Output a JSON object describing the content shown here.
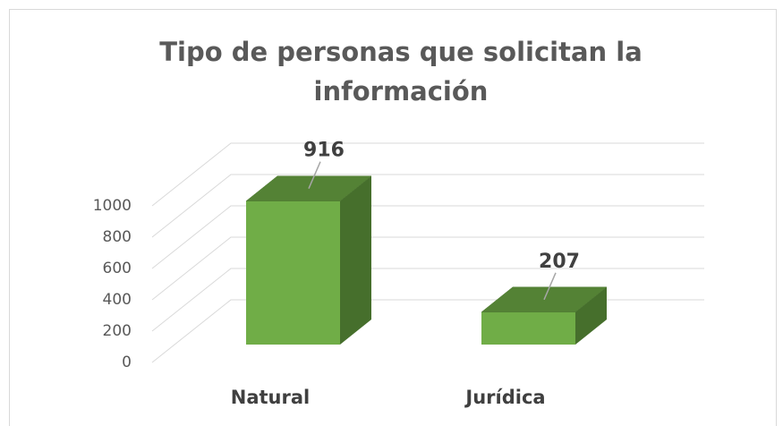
{
  "chart_data": {
    "type": "bar3d",
    "title": "Tipo de personas que solicitan la información",
    "categories": [
      "Natural",
      "Jurídica"
    ],
    "values": [
      916,
      207
    ],
    "color": "#70ad47",
    "ylim": [
      0,
      1000
    ],
    "yticks": [
      0,
      200,
      400,
      600,
      800,
      1000
    ],
    "grid": true
  }
}
